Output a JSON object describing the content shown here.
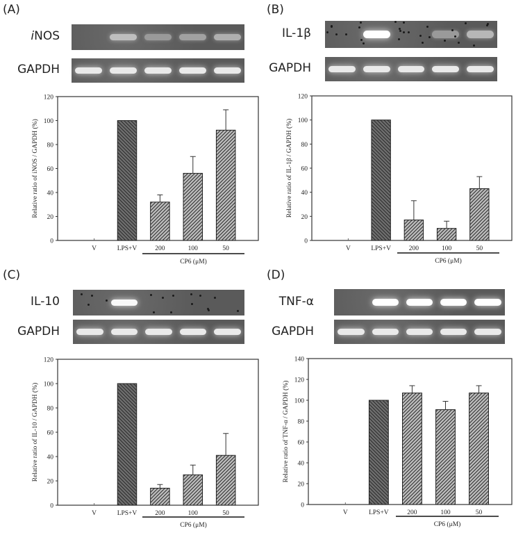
{
  "figure": {
    "panels": [
      {
        "letter": "(A)",
        "gene": "iNOS",
        "gene_italic_prefix": "i",
        "gene_rest": "NOS",
        "reference": "GAPDH",
        "gel_top_bands": [
          0,
          0.55,
          0.3,
          0.35,
          0.45
        ],
        "gel_ref_bands": [
          0.85,
          0.85,
          0.85,
          0.85,
          0.85
        ]
      },
      {
        "letter": "(B)",
        "gene": "IL-1β",
        "reference": "GAPDH",
        "gel_top_bands": [
          0,
          1.0,
          0,
          0.3,
          0.5
        ],
        "gel_ref_bands": [
          0.85,
          0.85,
          0.85,
          0.85,
          0.85
        ]
      },
      {
        "letter": "(C)",
        "gene": "IL-10",
        "reference": "GAPDH",
        "gel_top_bands": [
          0,
          0.95,
          0,
          0,
          0
        ],
        "gel_ref_bands": [
          0.85,
          0.85,
          0.85,
          0.85,
          0.85
        ]
      },
      {
        "letter": "(D)",
        "gene": "TNF-α",
        "reference": "GAPDH",
        "gel_top_bands": [
          0,
          1.0,
          1.0,
          1.0,
          1.0
        ],
        "gel_ref_bands": [
          0.85,
          0.85,
          0.85,
          0.85,
          0.85
        ]
      }
    ]
  },
  "colors": {
    "control_bar_fill": "#6e6e6e",
    "treated_bar_fill": "#bcbcbc",
    "hatch_line": "#2a2a2a",
    "axis": "#333333"
  },
  "chart_data": [
    {
      "type": "bar",
      "panel": "(A)",
      "title": "",
      "categories": [
        "V",
        "LPS+V",
        "200",
        "100",
        "50"
      ],
      "values": [
        0,
        100,
        32,
        56,
        92
      ],
      "error_upper": [
        0,
        0,
        38,
        70,
        109
      ],
      "xlabel": "CP6 (μM)",
      "group_label": "CP6 (μM)",
      "group_categories": [
        "200",
        "100",
        "50"
      ],
      "ylabel": "Relative ratio of iNOS / GAPDH (%)",
      "ylim": [
        0,
        120
      ],
      "yticks": [
        0,
        20,
        40,
        60,
        80,
        100,
        120
      ],
      "grid": false
    },
    {
      "type": "bar",
      "panel": "(B)",
      "title": "",
      "categories": [
        "V",
        "LPS+V",
        "200",
        "100",
        "50"
      ],
      "values": [
        0,
        100,
        17,
        10,
        43
      ],
      "error_upper": [
        0,
        0,
        33,
        16,
        53
      ],
      "xlabel": "CP6 (μM)",
      "group_label": "CP6 (μM)",
      "group_categories": [
        "200",
        "100",
        "50"
      ],
      "ylabel": "Relative ratio of IL-1β / GAPDH (%)",
      "ylim": [
        0,
        120
      ],
      "yticks": [
        0,
        20,
        40,
        60,
        80,
        100,
        120
      ],
      "grid": false
    },
    {
      "type": "bar",
      "panel": "(C)",
      "title": "",
      "categories": [
        "V",
        "LPS+V",
        "200",
        "100",
        "50"
      ],
      "values": [
        0,
        100,
        14,
        25,
        41
      ],
      "error_upper": [
        0,
        0,
        17,
        33,
        59
      ],
      "xlabel": "CP6 (μM)",
      "group_label": "CP6 (μM)",
      "group_categories": [
        "200",
        "100",
        "50"
      ],
      "ylabel": "Relative ratio of IL-10 / GAPDH (%)",
      "ylim": [
        0,
        120
      ],
      "yticks": [
        0,
        20,
        40,
        60,
        80,
        100,
        120
      ],
      "grid": false
    },
    {
      "type": "bar",
      "panel": "(D)",
      "title": "",
      "categories": [
        "V",
        "LPS+V",
        "200",
        "100",
        "50"
      ],
      "values": [
        0,
        100,
        107,
        91,
        107
      ],
      "error_upper": [
        0,
        0,
        114,
        99,
        114
      ],
      "xlabel": "CP6 (μM)",
      "group_label": "CP6 (μM)",
      "group_categories": [
        "200",
        "100",
        "50"
      ],
      "ylabel": "Relative ratio of TNF-α / GAPDH (%)",
      "ylim": [
        0,
        140
      ],
      "yticks": [
        0,
        20,
        40,
        60,
        80,
        100,
        120,
        140
      ],
      "grid": false
    }
  ]
}
